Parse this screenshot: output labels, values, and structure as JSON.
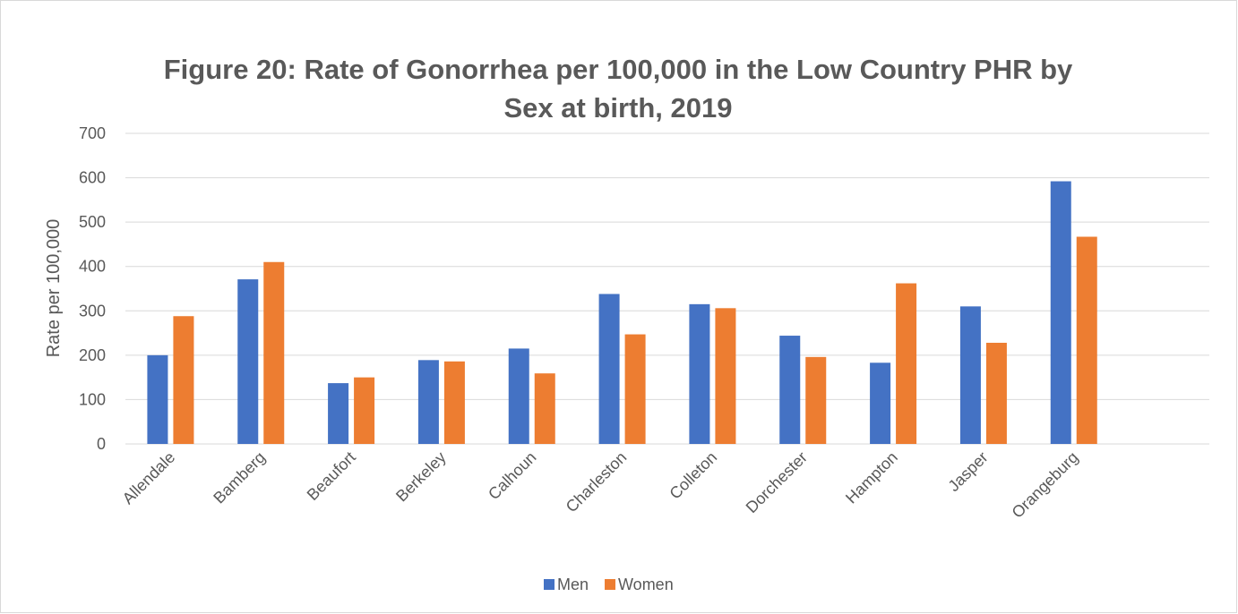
{
  "chart_data": {
    "type": "bar",
    "title": [
      "Figure 20: Rate of Gonorrhea per 100,000 in the Low Country PHR by",
      "Sex at birth, 2019"
    ],
    "y_label": "Rate per 100,000",
    "categories": [
      "Allendale",
      "Bamberg",
      "Beaufort",
      "Berkeley",
      "Calhoun",
      "Charleston",
      "Colleton",
      "Dorchester",
      "Hampton",
      "Jasper",
      "Orangeburg",
      null
    ],
    "series": [
      {
        "name": "Men",
        "color": "#4472c4",
        "values": [
          200,
          371,
          137,
          189,
          215,
          338,
          315,
          244,
          183,
          310,
          592,
          null
        ]
      },
      {
        "name": "Women",
        "color": "#ed7d31",
        "values": [
          288,
          410,
          150,
          186,
          159,
          247,
          306,
          196,
          362,
          228,
          467,
          null
        ]
      }
    ],
    "ylim": [
      0,
      700
    ],
    "yticks": [
      0,
      100,
      200,
      300,
      400,
      500,
      600,
      700
    ],
    "grid": true,
    "legend": "bottom"
  }
}
